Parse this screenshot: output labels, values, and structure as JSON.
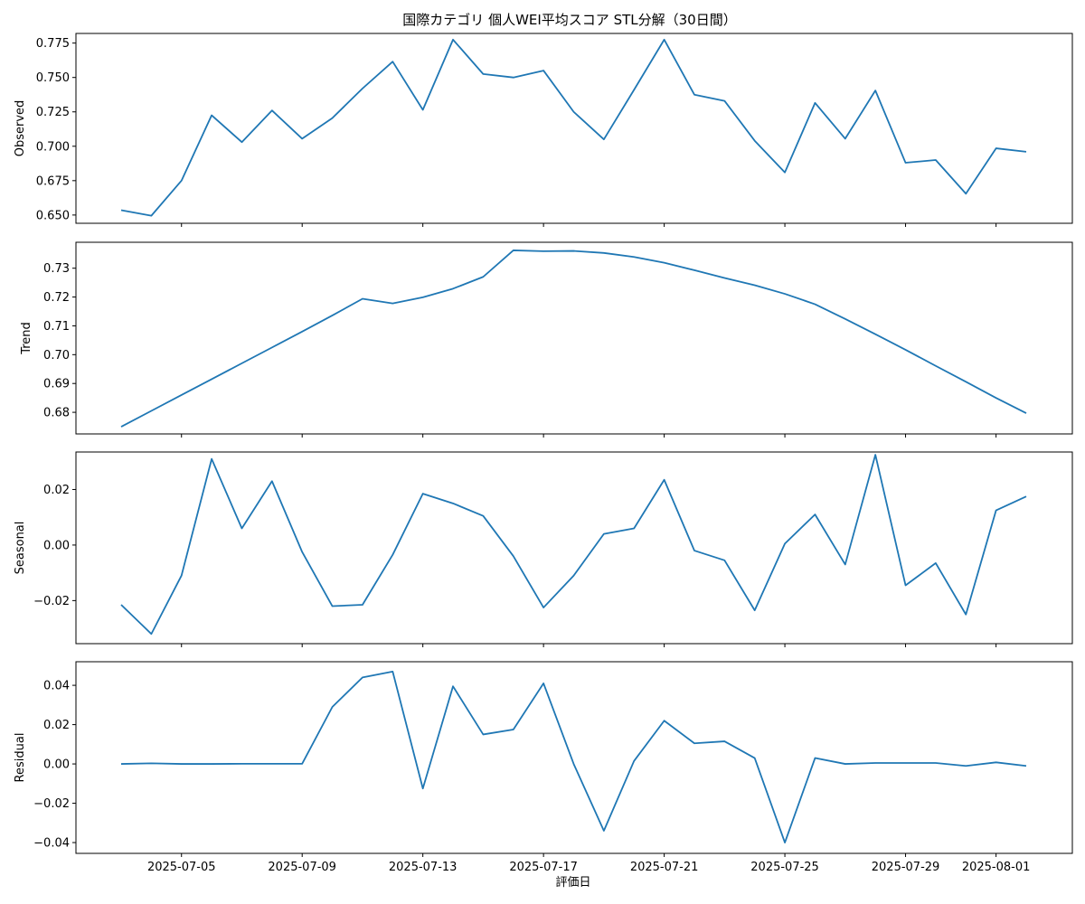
{
  "chart_data": {
    "type": "line",
    "title": "国際カテゴリ 個人WEI平均スコア STL分解（30日間）",
    "xlabel": "評価日",
    "x": [
      "2025-07-03",
      "2025-07-04",
      "2025-07-05",
      "2025-07-06",
      "2025-07-07",
      "2025-07-08",
      "2025-07-09",
      "2025-07-10",
      "2025-07-11",
      "2025-07-12",
      "2025-07-13",
      "2025-07-14",
      "2025-07-15",
      "2025-07-16",
      "2025-07-17",
      "2025-07-18",
      "2025-07-19",
      "2025-07-20",
      "2025-07-21",
      "2025-07-22",
      "2025-07-23",
      "2025-07-24",
      "2025-07-25",
      "2025-07-26",
      "2025-07-27",
      "2025-07-28",
      "2025-07-29",
      "2025-07-30",
      "2025-07-31",
      "2025-08-01",
      "2025-08-02"
    ],
    "x_ticks": [
      "2025-07-05",
      "2025-07-09",
      "2025-07-13",
      "2025-07-17",
      "2025-07-21",
      "2025-07-25",
      "2025-07-29",
      "2025-08-01"
    ],
    "line_color": "#1f77b4",
    "grid": false,
    "panels": [
      {
        "ylabel": "Observed",
        "ylim": [
          0.644,
          0.782
        ],
        "yticks": [
          0.65,
          0.675,
          0.7,
          0.725,
          0.75,
          0.775
        ],
        "ytick_labels": [
          "0.650",
          "0.675",
          "0.700",
          "0.725",
          "0.750",
          "0.775"
        ],
        "values": [
          0.6535,
          0.6495,
          0.675,
          0.7225,
          0.703,
          0.726,
          0.7055,
          0.7205,
          0.742,
          0.7615,
          0.7265,
          0.7775,
          0.7525,
          0.75,
          0.755,
          0.725,
          0.705,
          0.741,
          0.7775,
          0.7375,
          0.733,
          0.704,
          0.681,
          0.7315,
          0.7055,
          0.7405,
          0.688,
          0.69,
          0.6655,
          0.6985,
          0.696
        ]
      },
      {
        "ylabel": "Trend",
        "ylim": [
          0.6725,
          0.739
        ],
        "yticks": [
          0.68,
          0.69,
          0.7,
          0.71,
          0.72,
          0.73
        ],
        "ytick_labels": [
          "0.68",
          "0.69",
          "0.70",
          "0.71",
          "0.72",
          "0.73"
        ],
        "values": [
          0.675,
          0.6805,
          0.686,
          0.6915,
          0.697,
          0.7025,
          0.708,
          0.7136,
          0.7194,
          0.7178,
          0.7199,
          0.7229,
          0.727,
          0.7362,
          0.7359,
          0.736,
          0.7353,
          0.7339,
          0.7319,
          0.7293,
          0.7266,
          0.7241,
          0.7211,
          0.7175,
          0.7124,
          0.7071,
          0.7017,
          0.6961,
          0.6906,
          0.685,
          0.6797
        ]
      },
      {
        "ylabel": "Seasonal",
        "ylim": [
          -0.0355,
          0.0335
        ],
        "yticks": [
          -0.02,
          0.0,
          0.02
        ],
        "ytick_labels": [
          "−0.02",
          "0.00",
          "0.02"
        ],
        "values": [
          -0.0215,
          -0.032,
          -0.011,
          0.031,
          0.006,
          0.023,
          -0.0025,
          -0.022,
          -0.0215,
          -0.0035,
          0.0185,
          0.015,
          0.0105,
          -0.004,
          -0.0225,
          -0.011,
          0.004,
          0.006,
          0.0235,
          -0.002,
          -0.0055,
          -0.0235,
          0.0005,
          0.011,
          -0.007,
          0.0325,
          -0.0145,
          -0.0065,
          -0.025,
          0.0125,
          0.0175
        ]
      },
      {
        "ylabel": "Residual",
        "ylim": [
          -0.0455,
          0.052
        ],
        "yticks": [
          -0.04,
          -0.02,
          0.0,
          0.02,
          0.04
        ],
        "ytick_labels": [
          "−0.04",
          "−0.02",
          "0.00",
          "0.02",
          "0.04"
        ],
        "values": [
          0.0,
          0.0003,
          0.0,
          0.0,
          0.0001,
          0.0001,
          0.0001,
          0.029,
          0.044,
          0.047,
          -0.0125,
          0.0395,
          0.015,
          0.0175,
          0.041,
          0.0,
          -0.034,
          0.0015,
          0.022,
          0.0105,
          0.0115,
          0.003,
          -0.04,
          0.003,
          0.0,
          0.0005,
          0.0005,
          0.0005,
          -0.001,
          0.0008,
          -0.001
        ]
      }
    ]
  }
}
